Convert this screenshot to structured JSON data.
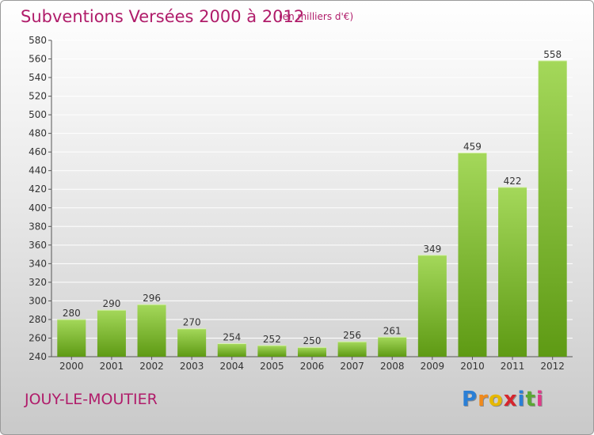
{
  "header": {
    "title": "Subventions Versées 2000 à 2012",
    "subtitle": "(en milliers d'€)"
  },
  "footer": {
    "commune": "JOUY-LE-MOUTIER",
    "logo_letters": [
      "P",
      "r",
      "o",
      "x",
      "i",
      "t",
      "i"
    ],
    "logo_colors": [
      "#2a7fd6",
      "#f08a1c",
      "#e6b800",
      "#d6252d",
      "#2a7fd6",
      "#5aa832",
      "#e03a8a"
    ]
  },
  "colors": {
    "bar_top": "#a4d85a",
    "bar_bottom": "#5e9a14",
    "grid": "#ffffff",
    "text": "#333333",
    "accent": "#b01c6a"
  },
  "chart_data": {
    "type": "bar",
    "title": "Subventions Versées 2000 à 2012",
    "subtitle": "(en milliers d'€)",
    "categories": [
      "2000",
      "2001",
      "2002",
      "2003",
      "2004",
      "2005",
      "2006",
      "2007",
      "2008",
      "2009",
      "2010",
      "2011",
      "2012"
    ],
    "values": [
      280,
      290,
      296,
      270,
      254,
      252,
      250,
      256,
      261,
      349,
      459,
      422,
      558
    ],
    "ylim": [
      240,
      580
    ],
    "yticks": [
      240,
      260,
      280,
      300,
      320,
      340,
      360,
      380,
      400,
      420,
      440,
      460,
      480,
      500,
      520,
      540,
      560,
      580
    ],
    "grid": true,
    "data_labels": true
  }
}
